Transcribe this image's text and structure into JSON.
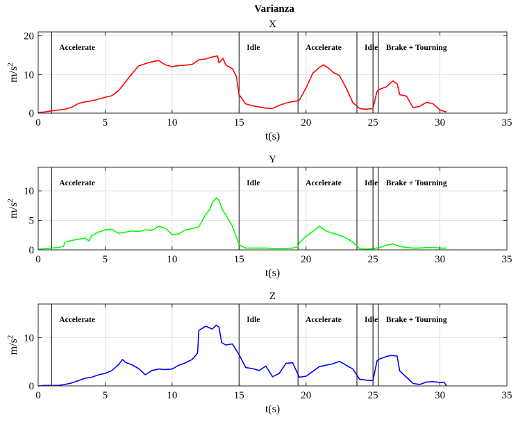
{
  "figure": {
    "title": "Varianza"
  },
  "chart_data": [
    {
      "type": "line",
      "title": "X",
      "xlabel": "t(s)",
      "ylabel": "m/s",
      "ylabel_sup": "2",
      "xlim": [
        0,
        35
      ],
      "ylim": [
        0,
        21
      ],
      "xticks": [
        0,
        5,
        10,
        15,
        20,
        25,
        30,
        35
      ],
      "yticks": [
        0,
        10,
        20
      ],
      "grid": true,
      "series": [
        {
          "color": "#ff0000",
          "x": [
            0,
            0.5,
            1,
            1.5,
            2,
            2.5,
            3,
            3.5,
            4,
            4.5,
            5,
            5.5,
            6,
            6.5,
            7,
            7.5,
            8,
            8.5,
            9,
            9.5,
            10,
            10.5,
            11,
            11.5,
            12,
            12.5,
            13,
            13.4,
            13.5,
            13.8,
            14,
            14.5,
            14.8,
            15,
            15.5,
            16,
            16.5,
            17,
            17.5,
            18,
            18.5,
            19,
            19.3,
            19.5,
            20,
            20.5,
            21,
            21.3,
            21.7,
            22,
            22.5,
            23,
            23.5,
            24,
            24.5,
            25,
            25.3,
            25.5,
            26,
            26.3,
            26.5,
            26.8,
            27,
            27.5,
            28,
            28.5,
            29,
            29.5,
            30,
            30.5
          ],
          "y": [
            0.2,
            0.3,
            0.6,
            0.8,
            1.0,
            1.5,
            2.5,
            2.9,
            3.2,
            3.6,
            4.1,
            4.5,
            5.8,
            8.0,
            10.2,
            12.2,
            12.8,
            13.3,
            13.6,
            12.5,
            12.0,
            12.3,
            12.4,
            12.6,
            13.8,
            14.0,
            14.5,
            14.8,
            13.0,
            14.2,
            12.5,
            11.5,
            9.5,
            4.8,
            2.4,
            1.9,
            1.6,
            1.3,
            1.2,
            2.0,
            2.6,
            3.0,
            3.1,
            3.4,
            6.5,
            10.3,
            11.8,
            12.5,
            11.6,
            10.6,
            9.7,
            6.5,
            2.7,
            1.2,
            1.0,
            1.2,
            5.6,
            6.2,
            6.8,
            7.8,
            8.3,
            7.6,
            4.8,
            4.4,
            1.4,
            1.8,
            2.8,
            2.4,
            0.8,
            0.3
          ]
        }
      ],
      "segments": [
        {
          "label": "Accelerate",
          "start": 1,
          "end": 15
        },
        {
          "label": "Idle",
          "start": 15,
          "end": 19.4
        },
        {
          "label": "Accelerate",
          "start": 19.4,
          "end": 23.8
        },
        {
          "label": "Idle",
          "start": 23.8,
          "end": 25.4
        },
        {
          "label": "Brake + Tourning",
          "start": 25.4,
          "end": 35
        }
      ],
      "vlines": [
        1,
        15,
        19.4,
        23.8,
        25.0,
        25.4
      ]
    },
    {
      "type": "line",
      "title": "Y",
      "xlabel": "t(s)",
      "ylabel": "m/s",
      "ylabel_sup": "2",
      "xlim": [
        0,
        35
      ],
      "ylim": [
        0,
        14
      ],
      "xticks": [
        0,
        5,
        10,
        15,
        20,
        25,
        30,
        35
      ],
      "yticks": [
        0,
        5,
        10
      ],
      "grid": true,
      "series": [
        {
          "color": "#00ff00",
          "x": [
            0,
            0.5,
            1,
            1.5,
            1.9,
            2,
            2.5,
            3,
            3.5,
            3.8,
            4,
            4.5,
            5,
            5.5,
            6,
            6.5,
            7,
            7.5,
            8,
            8.5,
            9,
            9.5,
            10,
            10.5,
            11,
            11.5,
            12,
            12.5,
            12.8,
            13,
            13.3,
            13.5,
            13.8,
            14,
            14.5,
            15,
            15.5,
            16,
            17,
            18,
            19,
            19.4,
            19.5,
            20,
            20.5,
            21,
            21.5,
            22,
            22.5,
            23,
            23.5,
            24,
            24.5,
            25,
            25.5,
            26,
            26.5,
            27,
            27.5,
            28,
            28.5,
            29,
            29.5,
            30,
            30.5
          ],
          "y": [
            0.1,
            0.2,
            0.3,
            0.4,
            0.6,
            1.3,
            1.6,
            1.8,
            2.0,
            1.5,
            2.4,
            3.0,
            3.4,
            3.5,
            2.8,
            3.0,
            3.2,
            3.1,
            3.4,
            3.3,
            4.0,
            3.7,
            2.6,
            2.7,
            3.4,
            3.6,
            3.9,
            6.0,
            6.8,
            8.0,
            8.8,
            8.4,
            6.6,
            6.0,
            4.0,
            0.9,
            0.3,
            0.3,
            0.3,
            0.2,
            0.3,
            0.5,
            1.2,
            2.3,
            3.1,
            4.0,
            3.2,
            2.8,
            2.5,
            2.0,
            1.3,
            0.2,
            0.1,
            0.2,
            0.4,
            0.8,
            1.0,
            0.6,
            0.4,
            0.3,
            0.3,
            0.4,
            0.4,
            0.3,
            0.3
          ]
        }
      ],
      "segments": [
        {
          "label": "Accelerate",
          "start": 1,
          "end": 15
        },
        {
          "label": "Idle",
          "start": 15,
          "end": 19.4
        },
        {
          "label": "Accelerate",
          "start": 19.4,
          "end": 23.8
        },
        {
          "label": "Idle",
          "start": 23.8,
          "end": 25.4
        },
        {
          "label": "Brake + Tourning",
          "start": 25.4,
          "end": 35
        }
      ],
      "vlines": [
        1,
        15,
        19.4,
        23.8,
        25.0,
        25.4
      ]
    },
    {
      "type": "line",
      "title": "Z",
      "xlabel": "t(s)",
      "ylabel": "m/s",
      "ylabel_sup": "2",
      "xlim": [
        0,
        35
      ],
      "ylim": [
        0,
        17
      ],
      "xticks": [
        0,
        5,
        10,
        15,
        20,
        25,
        30,
        35
      ],
      "yticks": [
        0,
        10
      ],
      "grid": true,
      "series": [
        {
          "color": "#0000ff",
          "x": [
            0,
            0.5,
            1,
            1.5,
            2,
            2.5,
            3,
            3.5,
            4,
            4.5,
            5,
            5.5,
            6,
            6.3,
            6.5,
            7,
            7.5,
            8,
            8.5,
            9,
            9.5,
            10,
            10.5,
            11,
            11.5,
            11.9,
            12,
            12.5,
            13,
            13.3,
            13.5,
            13.7,
            14,
            14.5,
            15,
            15.5,
            16,
            16.5,
            17,
            17.5,
            18,
            18.5,
            19,
            19.5,
            20,
            20.5,
            21,
            21.5,
            22,
            22.5,
            23,
            23.5,
            24,
            24.5,
            25,
            25.3,
            25.5,
            26,
            26.3,
            26.5,
            26.8,
            27,
            27.5,
            28,
            28.5,
            29,
            29.5,
            30,
            30.3,
            30.5
          ],
          "y": [
            0.0,
            0.1,
            0.1,
            0.1,
            0.3,
            0.6,
            1.1,
            1.6,
            1.8,
            2.3,
            2.6,
            3.2,
            4.4,
            5.5,
            4.9,
            4.4,
            3.6,
            2.3,
            3.2,
            3.5,
            3.4,
            3.5,
            4.3,
            4.8,
            5.5,
            6.8,
            11.5,
            12.4,
            11.8,
            12.6,
            12.2,
            9.0,
            8.5,
            8.7,
            6.5,
            3.8,
            3.6,
            3.2,
            4.1,
            1.9,
            2.6,
            4.7,
            4.8,
            1.8,
            2.0,
            3.0,
            4.0,
            4.3,
            4.6,
            5.1,
            4.3,
            3.5,
            1.4,
            1.2,
            1.1,
            5.2,
            5.6,
            6.1,
            6.3,
            6.3,
            6.2,
            3.1,
            1.8,
            0.5,
            0.3,
            0.8,
            0.9,
            0.7,
            0.8,
            0.0
          ]
        }
      ],
      "segments": [
        {
          "label": "Accelerate",
          "start": 1,
          "end": 15
        },
        {
          "label": "Idle",
          "start": 15,
          "end": 19.4
        },
        {
          "label": "Accelerate",
          "start": 19.4,
          "end": 23.8
        },
        {
          "label": "Idle",
          "start": 23.8,
          "end": 25.4
        },
        {
          "label": "Brake + Tourning",
          "start": 25.4,
          "end": 35
        }
      ],
      "vlines": [
        1,
        15,
        19.4,
        23.8,
        25.0,
        25.4
      ]
    }
  ]
}
